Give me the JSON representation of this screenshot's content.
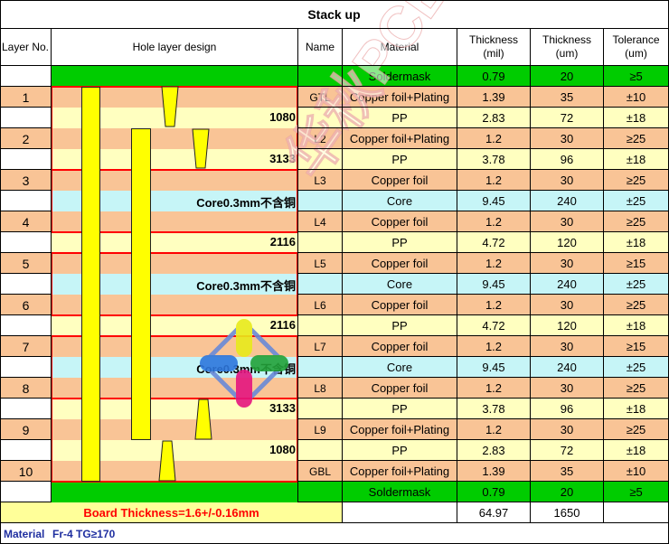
{
  "title": "Stack up",
  "headers": {
    "layer_no": "Layer No.",
    "hole_design": "Hole layer design",
    "name": "Name",
    "material": "Material",
    "thickness_mil": "Thickness\n(mil)",
    "thickness_um": "Thickness\n(um)",
    "tolerance": "Tolerance\n(um)"
  },
  "rows": [
    {
      "layer": "",
      "label": "",
      "name": "",
      "material": "Soldermask",
      "mil": "0.79",
      "um": "20",
      "tol": "≥5",
      "color": "#00cc00"
    },
    {
      "layer": "1",
      "label": "",
      "name": "GTL",
      "material": "Copper foil+Plating",
      "mil": "1.39",
      "um": "35",
      "tol": "±10",
      "color": "#f9c496"
    },
    {
      "layer": "",
      "label": "1080",
      "name": "",
      "material": "PP",
      "mil": "2.83",
      "um": "72",
      "tol": "±18",
      "color": "#ffffc0"
    },
    {
      "layer": "2",
      "label": "",
      "name": "L2",
      "material": "Copper foil+Plating",
      "mil": "1.2",
      "um": "30",
      "tol": "≥25",
      "color": "#f9c496"
    },
    {
      "layer": "",
      "label": "3133",
      "name": "",
      "material": "PP",
      "mil": "3.78",
      "um": "96",
      "tol": "±18",
      "color": "#ffffc0"
    },
    {
      "layer": "3",
      "label": "",
      "name": "L3",
      "material": "Copper foil",
      "mil": "1.2",
      "um": "30",
      "tol": "≥25",
      "color": "#f9c496"
    },
    {
      "layer": "",
      "label": "Core0.3mm不含铜",
      "name": "",
      "material": "Core",
      "mil": "9.45",
      "um": "240",
      "tol": "±25",
      "color": "#c6f5f7"
    },
    {
      "layer": "4",
      "label": "",
      "name": "L4",
      "material": "Copper foil",
      "mil": "1.2",
      "um": "30",
      "tol": "≥25",
      "color": "#f9c496"
    },
    {
      "layer": "",
      "label": "2116",
      "name": "",
      "material": "PP",
      "mil": "4.72",
      "um": "120",
      "tol": "±18",
      "color": "#ffffc0"
    },
    {
      "layer": "5",
      "label": "",
      "name": "L5",
      "material": "Copper foil",
      "mil": "1.2",
      "um": "30",
      "tol": "≥15",
      "color": "#f9c496"
    },
    {
      "layer": "",
      "label": "Core0.3mm不含铜",
      "name": "",
      "material": "Core",
      "mil": "9.45",
      "um": "240",
      "tol": "±25",
      "color": "#c6f5f7"
    },
    {
      "layer": "6",
      "label": "",
      "name": "L6",
      "material": "Copper foil",
      "mil": "1.2",
      "um": "30",
      "tol": "≥25",
      "color": "#f9c496"
    },
    {
      "layer": "",
      "label": "2116",
      "name": "",
      "material": "PP",
      "mil": "4.72",
      "um": "120",
      "tol": "±18",
      "color": "#ffffc0"
    },
    {
      "layer": "7",
      "label": "",
      "name": "L7",
      "material": "Copper foil",
      "mil": "1.2",
      "um": "30",
      "tol": "≥15",
      "color": "#f9c496"
    },
    {
      "layer": "",
      "label": "Core0.3mm不含铜",
      "name": "",
      "material": "Core",
      "mil": "9.45",
      "um": "240",
      "tol": "±25",
      "color": "#c6f5f7"
    },
    {
      "layer": "8",
      "label": "",
      "name": "L8",
      "material": "Copper foil",
      "mil": "1.2",
      "um": "30",
      "tol": "≥25",
      "color": "#f9c496"
    },
    {
      "layer": "",
      "label": "3133",
      "name": "",
      "material": "PP",
      "mil": "3.78",
      "um": "96",
      "tol": "±18",
      "color": "#ffffc0"
    },
    {
      "layer": "9",
      "label": "",
      "name": "L9",
      "material": "Copper foil+Plating",
      "mil": "1.2",
      "um": "30",
      "tol": "≥25",
      "color": "#f9c496"
    },
    {
      "layer": "",
      "label": "1080",
      "name": "",
      "material": "PP",
      "mil": "2.83",
      "um": "72",
      "tol": "±18",
      "color": "#ffffc0"
    },
    {
      "layer": "10",
      "label": "",
      "name": "GBL",
      "material": "Copper foil+Plating",
      "mil": "1.39",
      "um": "35",
      "tol": "±10",
      "color": "#f9c496"
    },
    {
      "layer": "",
      "label": "",
      "name": "",
      "material": "Soldermask",
      "mil": "0.79",
      "um": "20",
      "tol": "≥5",
      "color": "#00cc00"
    }
  ],
  "footer": {
    "board_thickness": "Board Thickness=1.6+/-0.16mm",
    "total_mil": "64.97",
    "total_um": "1650",
    "material_label": "Material",
    "material_value": "Fr-4  TG≥170"
  },
  "colors": {
    "soldermask": "#00cc00",
    "copper": "#f9c496",
    "pp": "#ffffc0",
    "core": "#c6f5f7",
    "board_bg": "#ffff99",
    "via": "#ffff00",
    "highlight": "#ff0000",
    "material_text": "#1f2fa0"
  },
  "watermark": {
    "text": "华秋PCB",
    "icon": "crosshair-logo-icon"
  }
}
